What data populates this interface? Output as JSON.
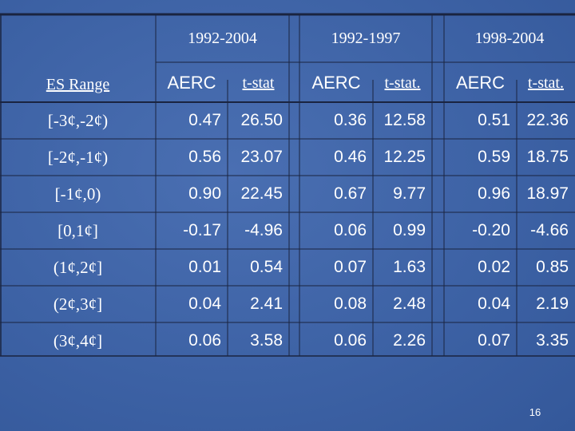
{
  "table": {
    "periods": [
      "1992-2004",
      "1992-1997",
      "1998-2004"
    ],
    "row_header": "ES Range",
    "subheaders": [
      "AERC",
      "t-stat",
      "AERC",
      "t-stat.",
      "AERC",
      "t-stat."
    ],
    "rows": [
      [
        "[-3¢,-2¢)",
        "0.47",
        "26.50",
        "0.36",
        "12.58",
        "0.51",
        "22.36"
      ],
      [
        "[-2¢,-1¢)",
        "0.56",
        "23.07",
        "0.46",
        "12.25",
        "0.59",
        "18.75"
      ],
      [
        "[-1¢,0)",
        "0.90",
        "22.45",
        "0.67",
        "9.77",
        "0.96",
        "18.97"
      ],
      [
        "[0,1¢]",
        "-0.17",
        "-4.96",
        "0.06",
        "0.99",
        "-0.20",
        "-4.66"
      ],
      [
        "(1¢,2¢]",
        "0.01",
        "0.54",
        "0.07",
        "1.63",
        "0.02",
        "0.85"
      ],
      [
        "(2¢,3¢]",
        "0.04",
        "2.41",
        "0.08",
        "2.48",
        "0.04",
        "2.19"
      ],
      [
        "(3¢,4¢]",
        "0.06",
        "3.58",
        "0.06",
        "2.26",
        "0.07",
        "3.35"
      ]
    ]
  },
  "footer": {
    "page_number": "16"
  }
}
